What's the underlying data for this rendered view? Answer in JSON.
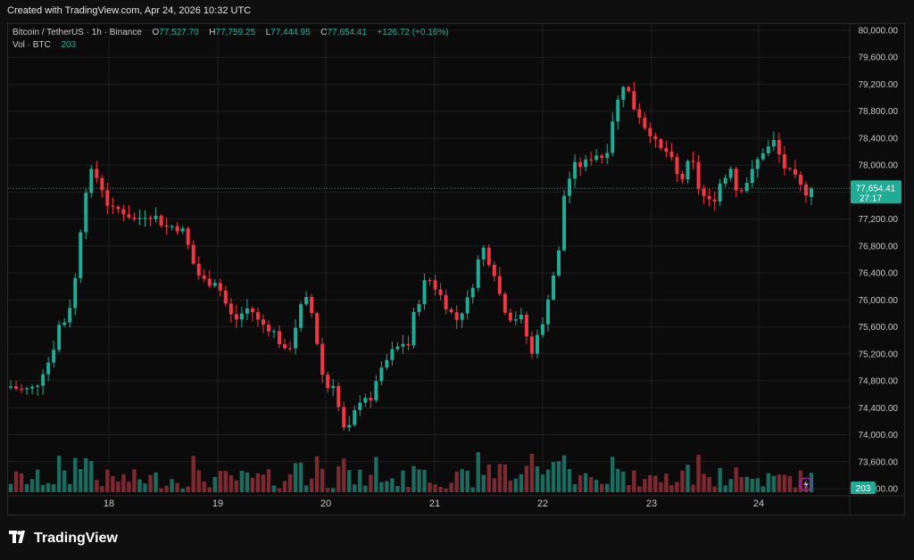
{
  "header": {
    "created_text": "Created with TradingView.com, Apr 24, 2026 10:32 UTC"
  },
  "legend": {
    "symbol": "Bitcoin / TetherUS · 1h · Binance",
    "o_label": "O",
    "o_value": "77,527.70",
    "h_label": "H",
    "h_value": "77,759.25",
    "l_label": "L",
    "l_value": "77,444.95",
    "c_label": "C",
    "c_value": "77,654.41",
    "change": "+126.72 (+0.16%)",
    "vol_label": "Vol · BTC",
    "vol_value": "203"
  },
  "colors": {
    "up": "#22ab94",
    "down": "#f23645",
    "up_vol": "#1c6b5f",
    "down_vol": "#7b2a32",
    "grid": "#1e1e1e",
    "text": "#c9c9c9",
    "bg": "#0b0b0b"
  },
  "price_axis": {
    "ticks": [
      "80,000.00",
      "79,600.00",
      "79,200.00",
      "78,800.00",
      "78,400.00",
      "78,000.00",
      "77,600.00",
      "77,200.00",
      "76,800.00",
      "76,400.00",
      "76,000.00",
      "75,600.00",
      "75,200.00",
      "74,800.00",
      "74,400.00",
      "74,000.00",
      "73,600.00",
      "73,200.00"
    ],
    "current_price": "77,654.41",
    "countdown": "27:17",
    "volume_badge": "203"
  },
  "time_axis": {
    "ticks": [
      "18",
      "19",
      "20",
      "21",
      "22",
      "23",
      "24"
    ]
  },
  "footer": {
    "brand": "TradingView"
  },
  "chart_data": {
    "type": "candlestick",
    "title": "Bitcoin / TetherUS · 1h · Binance",
    "ylim": [
      73200,
      80000
    ],
    "x_ticks": [
      "18",
      "19",
      "20",
      "21",
      "22",
      "23",
      "24"
    ],
    "last_close": 77654.41,
    "close_path": [
      [
        0,
        74720
      ],
      [
        4,
        74650
      ],
      [
        8,
        74700
      ],
      [
        10,
        74920
      ],
      [
        13,
        75150
      ],
      [
        16,
        75700
      ],
      [
        18,
        75680
      ],
      [
        21,
        76360
      ],
      [
        23,
        77280
      ],
      [
        25,
        77880
      ],
      [
        27,
        77880
      ],
      [
        30,
        77610
      ],
      [
        32,
        77300
      ],
      [
        34,
        77350
      ],
      [
        37,
        77300
      ],
      [
        40,
        77180
      ],
      [
        44,
        77290
      ],
      [
        47,
        77220
      ],
      [
        50,
        77080
      ],
      [
        53,
        77100
      ],
      [
        56,
        77000
      ],
      [
        58,
        76650
      ],
      [
        60,
        76400
      ],
      [
        63,
        76250
      ],
      [
        66,
        76300
      ],
      [
        68,
        76100
      ],
      [
        70,
        75850
      ],
      [
        72,
        75680
      ],
      [
        74,
        75780
      ],
      [
        77,
        75900
      ],
      [
        80,
        75660
      ],
      [
        83,
        75600
      ],
      [
        86,
        75460
      ],
      [
        88,
        75200
      ],
      [
        90,
        75320
      ],
      [
        92,
        75650
      ],
      [
        94,
        75970
      ],
      [
        96,
        76000
      ],
      [
        98,
        75600
      ],
      [
        100,
        74950
      ],
      [
        102,
        74700
      ],
      [
        104,
        74780
      ],
      [
        106,
        74320
      ],
      [
        108,
        73960
      ],
      [
        110,
        74200
      ],
      [
        112,
        74500
      ],
      [
        114,
        74600
      ],
      [
        116,
        74450
      ],
      [
        118,
        74880
      ],
      [
        120,
        74950
      ],
      [
        122,
        75200
      ],
      [
        124,
        75250
      ],
      [
        126,
        75380
      ],
      [
        128,
        75300
      ],
      [
        130,
        75800
      ],
      [
        132,
        76050
      ],
      [
        134,
        76350
      ],
      [
        136,
        76250
      ],
      [
        138,
        76100
      ],
      [
        140,
        75950
      ],
      [
        142,
        75800
      ],
      [
        144,
        75700
      ],
      [
        146,
        75900
      ],
      [
        148,
        76050
      ],
      [
        150,
        76480
      ],
      [
        152,
        76800
      ],
      [
        154,
        76600
      ],
      [
        156,
        76400
      ],
      [
        158,
        76000
      ],
      [
        160,
        75800
      ],
      [
        162,
        75700
      ],
      [
        164,
        75800
      ],
      [
        166,
        75500
      ],
      [
        168,
        75180
      ],
      [
        170,
        75600
      ],
      [
        172,
        75600
      ],
      [
        174,
        76400
      ],
      [
        176,
        76350
      ],
      [
        178,
        77500
      ],
      [
        180,
        77800
      ],
      [
        182,
        78000
      ],
      [
        184,
        78000
      ],
      [
        186,
        78050
      ],
      [
        188,
        78200
      ],
      [
        190,
        78100
      ],
      [
        192,
        78200
      ],
      [
        194,
        78700
      ],
      [
        196,
        79000
      ],
      [
        198,
        79300
      ],
      [
        200,
        78900
      ],
      [
        202,
        78800
      ],
      [
        204,
        78600
      ],
      [
        206,
        78500
      ],
      [
        208,
        78300
      ],
      [
        210,
        78200
      ],
      [
        212,
        78200
      ],
      [
        214,
        77900
      ],
      [
        216,
        77750
      ],
      [
        218,
        78000
      ],
      [
        220,
        78000
      ],
      [
        222,
        77600
      ],
      [
        224,
        77500
      ],
      [
        226,
        77400
      ],
      [
        228,
        77700
      ],
      [
        230,
        77800
      ],
      [
        232,
        78000
      ],
      [
        234,
        77600
      ],
      [
        236,
        77700
      ],
      [
        238,
        77800
      ],
      [
        240,
        78000
      ],
      [
        242,
        78200
      ],
      [
        244,
        78250
      ],
      [
        246,
        78350
      ],
      [
        248,
        78100
      ],
      [
        250,
        77900
      ],
      [
        252,
        77850
      ],
      [
        254,
        77700
      ],
      [
        256,
        77600
      ],
      [
        258,
        77654
      ]
    ],
    "volume_note": "hourly volume bars shown at bottom, last = 203"
  }
}
